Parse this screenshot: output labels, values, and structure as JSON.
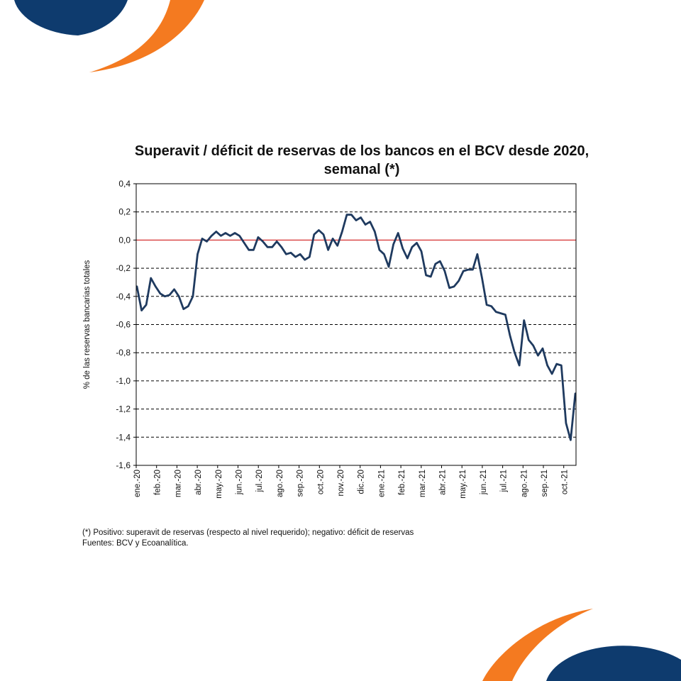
{
  "brand": {
    "navy": "#0e3b6e",
    "orange": "#f47a20"
  },
  "chart_data": {
    "type": "line",
    "title": "Superavit / déficit de reservas de los bancos en el BCV desde 2020, semanal (*)",
    "ylabel": "% de las reservas bancarias totales",
    "xlabel": "",
    "ylim": [
      -1.6,
      0.4
    ],
    "yticks": [
      0.4,
      0.2,
      0.0,
      -0.2,
      -0.4,
      -0.6,
      -0.8,
      -1.0,
      -1.2,
      -1.4,
      -1.6
    ],
    "ytick_labels": [
      "0,4",
      "0,2",
      "0,0",
      "-0,2",
      "-0,4",
      "-0,6",
      "-0,8",
      "-1,0",
      "-1,2",
      "-1,4",
      "-1,6"
    ],
    "x_tick_labels": [
      "ene.-20",
      "feb.-20",
      "mar.-20",
      "abr.-20",
      "may.-20",
      "jun.-20",
      "jul.-20",
      "ago.-20",
      "sep.-20",
      "oct.-20",
      "nov.-20",
      "dic.-20",
      "ene.-21",
      "feb.-21",
      "mar.-21",
      "abr.-21",
      "may.-21",
      "jun.-21",
      "jul.-21",
      "ago.-21",
      "sep.-21",
      "oct.-21"
    ],
    "grid": "horizontal dashed",
    "zero_line_color": "#cc0000",
    "line_color": "#1f3a5f",
    "series": [
      {
        "values": [
          -0.33,
          -0.5,
          -0.46,
          -0.27,
          -0.33,
          -0.38,
          -0.4,
          -0.39,
          -0.35,
          -0.4,
          -0.49,
          -0.47,
          -0.4,
          -0.1,
          0.01,
          -0.01,
          0.03,
          0.06,
          0.03,
          0.05,
          0.03,
          0.05,
          0.03,
          -0.02,
          -0.07,
          -0.07,
          0.02,
          -0.01,
          -0.05,
          -0.05,
          -0.01,
          -0.05,
          -0.1,
          -0.09,
          -0.12,
          -0.1,
          -0.14,
          -0.12,
          0.04,
          0.07,
          0.04,
          -0.07,
          0.01,
          -0.04,
          0.06,
          0.18,
          0.18,
          0.14,
          0.16,
          0.11,
          0.13,
          0.06,
          -0.07,
          -0.1,
          -0.19,
          -0.03,
          0.05,
          -0.06,
          -0.13,
          -0.05,
          -0.02,
          -0.08,
          -0.25,
          -0.26,
          -0.17,
          -0.15,
          -0.22,
          -0.34,
          -0.33,
          -0.29,
          -0.22,
          -0.21,
          -0.21,
          -0.1,
          -0.27,
          -0.46,
          -0.47,
          -0.51,
          -0.52,
          -0.53,
          -0.68,
          -0.8,
          -0.89,
          -0.57,
          -0.71,
          -0.75,
          -0.82,
          -0.77,
          -0.89,
          -0.95,
          -0.88,
          -0.89,
          -1.3,
          -1.42,
          -1.09
        ]
      }
    ]
  },
  "footnote": {
    "line1": "(*) Positivo: superavit de reservas (respecto al nivel requerido); negativo: déficit de reservas",
    "line2": "Fuentes: BCV y Ecoanalítica."
  }
}
